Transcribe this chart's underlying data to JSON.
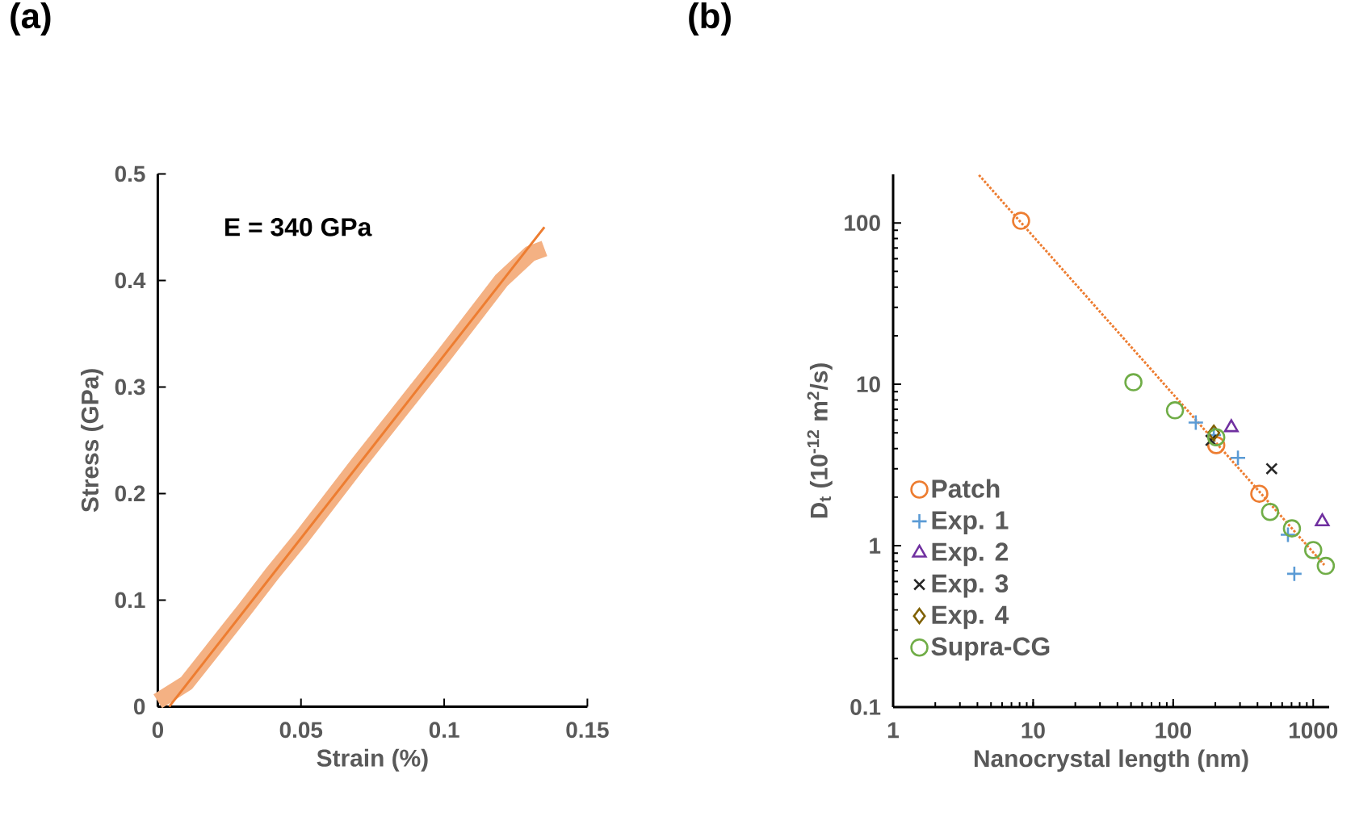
{
  "chart_data": [
    {
      "type": "line",
      "title": "(a)",
      "xlabel": "Strain (%)",
      "ylabel": "Stress (GPa)",
      "xlim": [
        0,
        0.15
      ],
      "ylim": [
        0,
        0.5
      ],
      "xticks": [
        0,
        0.05,
        0.1,
        0.15
      ],
      "yticks": [
        0,
        0.1,
        0.2,
        0.3,
        0.4,
        0.5
      ],
      "grid": false,
      "legend": false,
      "annotations": [
        "E = 340 GPa"
      ],
      "series": [
        {
          "color": "#f4b183",
          "x": [
            0,
            0.01,
            0.02,
            0.03,
            0.04,
            0.05,
            0.06,
            0.07,
            0.08,
            0.09,
            0.1,
            0.11,
            0.12,
            0.13,
            0.135
          ],
          "values": [
            0.005,
            0.022,
            0.056,
            0.09,
            0.125,
            0.158,
            0.193,
            0.228,
            0.262,
            0.296,
            0.33,
            0.365,
            0.4,
            0.425,
            0.43
          ]
        },
        {
          "color": "#ed7d31",
          "x": [
            0.004,
            0.135
          ],
          "values": [
            0,
            0.45
          ]
        }
      ]
    },
    {
      "type": "scatter",
      "title": "(b)",
      "xlabel": "Nanocrystal length (nm)",
      "ylabel": "D$_{t}$ (10$^{-12}$ m$^{2}$/s)",
      "log": "xy",
      "xlim": [
        1,
        1300
      ],
      "ylim": [
        0.1,
        200
      ],
      "xticks": [
        1,
        10,
        100,
        1000
      ],
      "yticks": [
        0.1,
        1,
        10,
        100
      ],
      "grid": false,
      "legend": "bottom left",
      "series": [
        {
          "type": "line",
          "color": "#ed7d31",
          "line_style": "dotted",
          "marker": "none",
          "x": [
            4.1,
            1200
          ],
          "values": [
            198,
            0.76
          ]
        },
        {
          "name": "Patch",
          "color": "#ed7d31",
          "marker": "circle",
          "x": [
            8.2,
            203,
            412
          ],
          "values": [
            103,
            4.2,
            2.1
          ]
        },
        {
          "name": "Exp. 1",
          "color": "#5b9bd5",
          "marker": "plus",
          "x": [
            145,
            195,
            290,
            660,
            733
          ],
          "values": [
            5.8,
            4.85,
            3.5,
            1.17,
            0.67
          ]
        },
        {
          "name": "Exp. 2",
          "color": "#7030a0",
          "marker": "triangle",
          "x": [
            260,
            1160
          ],
          "values": [
            5.4,
            1.41
          ]
        },
        {
          "name": "Exp. 3",
          "color": "#262626",
          "marker": "cross",
          "x": [
            186,
            505
          ],
          "values": [
            4.5,
            3.0
          ]
        },
        {
          "name": "Exp. 4",
          "color": "#7f6000",
          "marker": "diamond",
          "x": [
            195
          ],
          "values": [
            5.0
          ]
        },
        {
          "name": "Supra-CG",
          "color": "#70ad47",
          "marker": "circle",
          "x": [
            52,
            103,
            203,
            492,
            705,
            1000,
            1230
          ],
          "values": [
            10.3,
            6.9,
            4.7,
            1.62,
            1.28,
            0.94,
            0.75
          ]
        }
      ]
    }
  ]
}
